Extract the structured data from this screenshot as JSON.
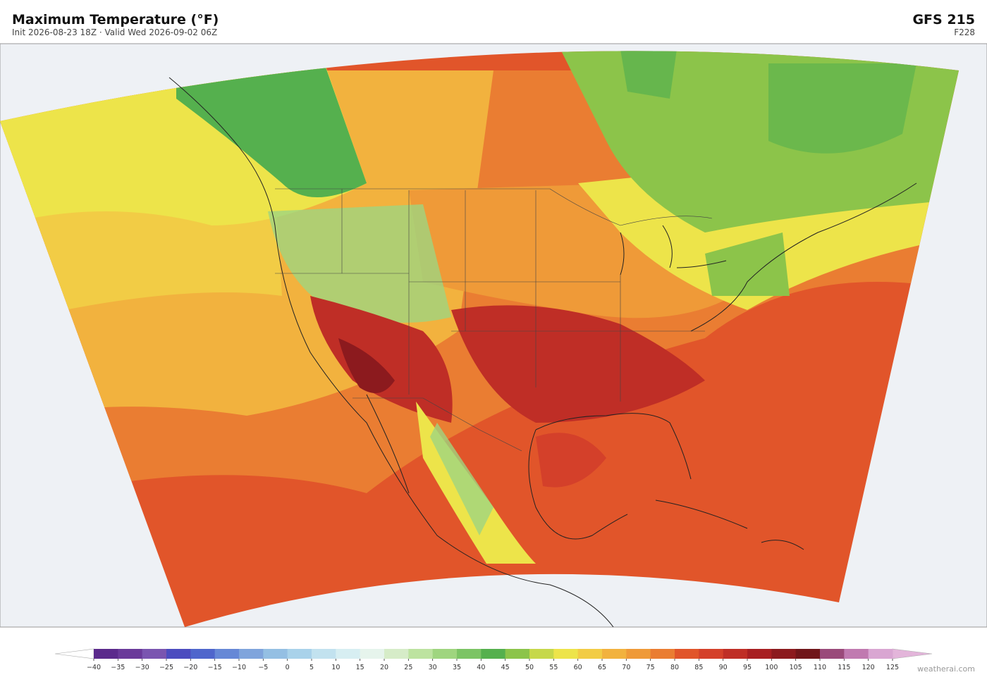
{
  "header": {
    "title": "Maximum Temperature  (°F)",
    "subtitle": "Init 2026-08-23 18Z  ·  Valid Wed 2026-09-02 06Z",
    "model": "GFS  215",
    "forecast_hour": "F228"
  },
  "colorbar": {
    "ticks": [
      {
        "value": -40,
        "label": "−40"
      },
      {
        "value": -35,
        "label": "−35"
      },
      {
        "value": -30,
        "label": "−30"
      },
      {
        "value": -25,
        "label": "−25"
      },
      {
        "value": -20,
        "label": "−20"
      },
      {
        "value": -15,
        "label": "−15"
      },
      {
        "value": -10,
        "label": "−10"
      },
      {
        "value": -5,
        "label": "−5"
      },
      0,
      5,
      10,
      15,
      20,
      25,
      30,
      35,
      40,
      45,
      50,
      55,
      60,
      65,
      70,
      75,
      80,
      85,
      90,
      95,
      100,
      105,
      110,
      115,
      120,
      125
    ],
    "colors": [
      "#5b2a8c",
      "#6a3a9a",
      "#7a55b0",
      "#4c4cbf",
      "#4f66cc",
      "#6688d6",
      "#7fa4dc",
      "#94bfe3",
      "#a9d2ea",
      "#c2e2ef",
      "#d7eef2",
      "#e6f4ec",
      "#d6ecc8",
      "#bde3a0",
      "#9fd57f",
      "#7cc465",
      "#55b04e",
      "#8cc44a",
      "#c6d84a",
      "#ede44a",
      "#f2cc45",
      "#f2b23e",
      "#ef9a38",
      "#ea7d32",
      "#e1552a",
      "#d4402a",
      "#bf2e26",
      "#a81f22",
      "#8c1a1e",
      "#70161a",
      "#9a4a7a",
      "#c07ab0",
      "#d9a6d2"
    ],
    "under_color": "#ffffff",
    "over_color": "#e3b5da"
  },
  "watermark": "weatherai.com"
}
